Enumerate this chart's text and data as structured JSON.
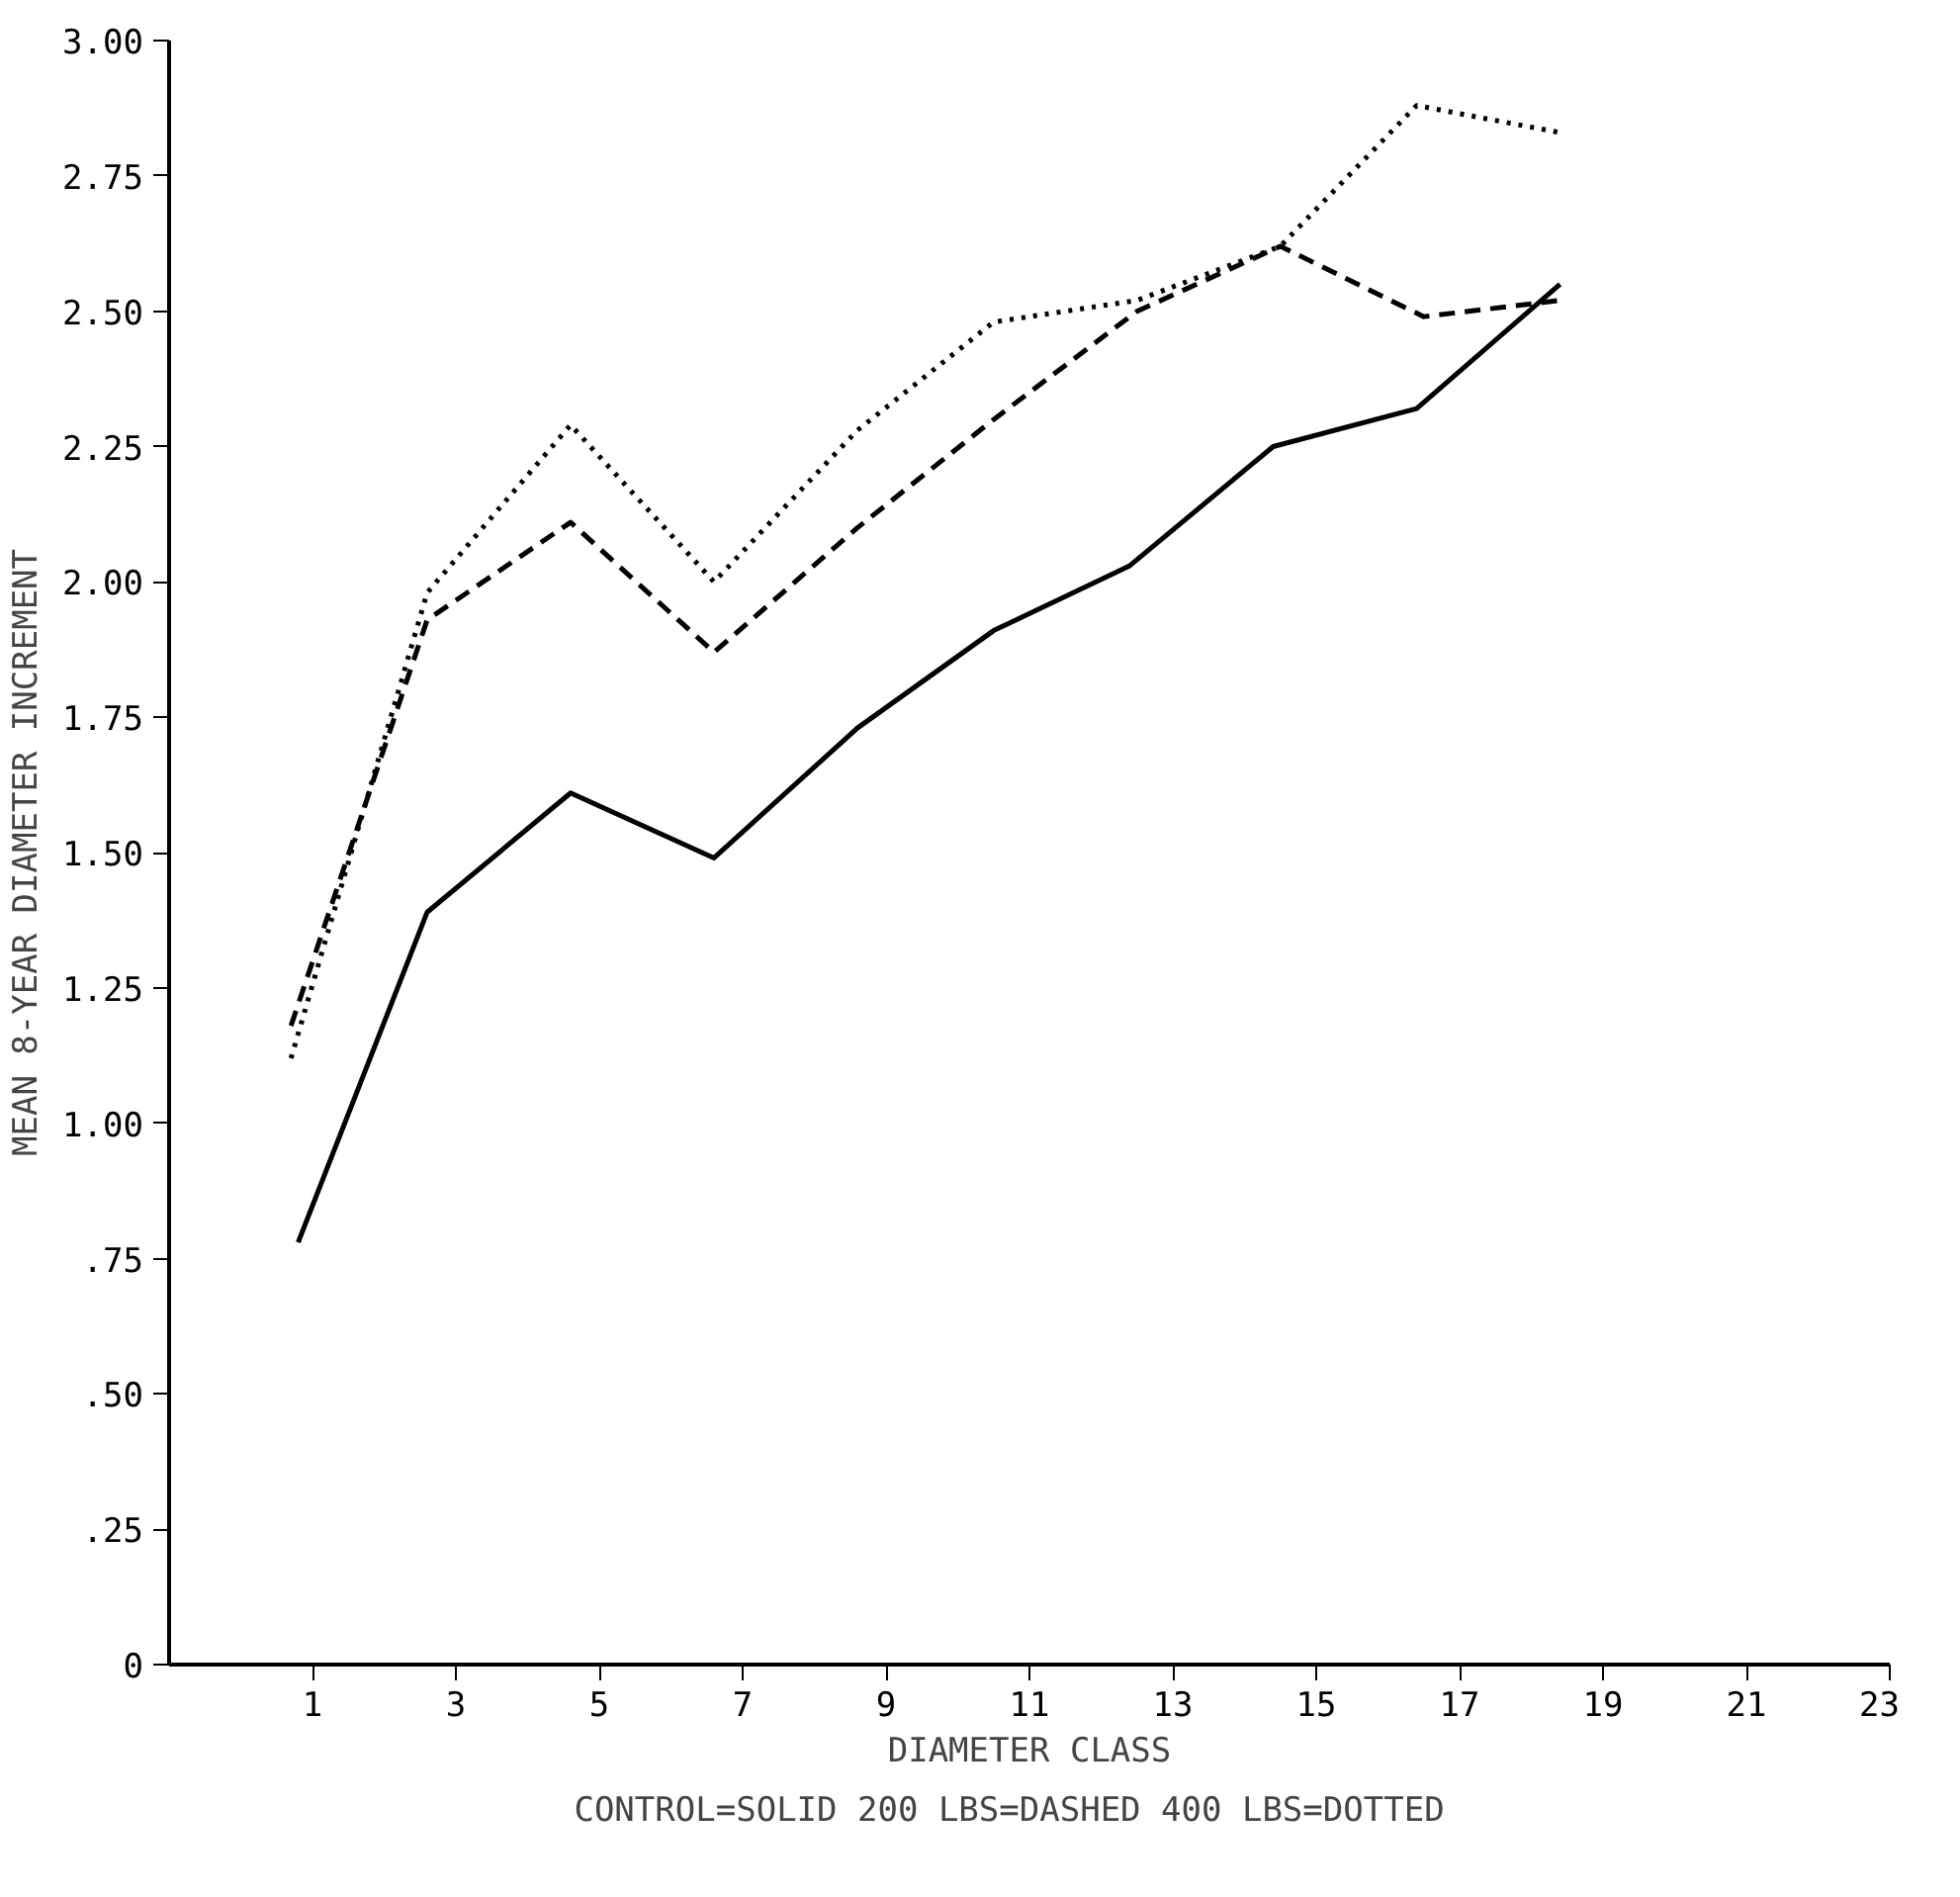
{
  "chart_data": {
    "type": "line",
    "xlabel": "DIAMETER CLASS",
    "ylabel": "MEAN 8-YEAR DIAMETER INCREMENT",
    "annotations": [
      "CONTROL=SOLID  200 LBS=DASHED  400 LBS=DOTTED"
    ],
    "xlim": [
      -1,
      23
    ],
    "xticks": [
      1,
      3,
      5,
      7,
      9,
      11,
      13,
      15,
      17,
      19,
      21,
      23
    ],
    "ylim": [
      0,
      3
    ],
    "yticks": [
      0,
      {
        "value": 0.25,
        "label": ".25"
      },
      {
        "value": 0.5,
        "label": ".50"
      },
      {
        "value": 0.75,
        "label": ".75"
      },
      {
        "value": 1,
        "label": "1.00"
      },
      {
        "value": 1.25,
        "label": "1.25"
      },
      {
        "value": 1.5,
        "label": "1.50"
      },
      {
        "value": 1.75,
        "label": "1.75"
      },
      {
        "value": 2,
        "label": "2.00"
      },
      {
        "value": 2.25,
        "label": "2.25"
      },
      {
        "value": 2.5,
        "label": "2.50"
      },
      {
        "value": 2.75,
        "label": "2.75"
      },
      {
        "value": 3,
        "label": "3.00"
      }
    ],
    "grid": false,
    "series": [
      {
        "color": "#000000",
        "line_style": "solid",
        "x": [
          0.8,
          2.6,
          4.6,
          6.6,
          8.6,
          10.5,
          12.4,
          14.4,
          16.4,
          18.4
        ],
        "values": [
          0.78,
          1.39,
          1.61,
          1.49,
          1.73,
          1.91,
          2.03,
          2.25,
          2.32,
          2.55
        ]
      },
      {
        "color": "#000000",
        "line_style": "dashed",
        "x": [
          0.7,
          2.6,
          4.6,
          6.6,
          8.6,
          10.5,
          12.5,
          14.5,
          16.5,
          18.4
        ],
        "values": [
          1.18,
          1.93,
          2.11,
          1.87,
          2.1,
          2.3,
          2.5,
          2.62,
          2.49,
          2.52
        ]
      },
      {
        "color": "#000000",
        "line_style": "dotted",
        "x": [
          0.7,
          2.6,
          4.6,
          6.6,
          8.6,
          10.5,
          12.5,
          14.5,
          16.4,
          18.4
        ],
        "values": [
          1.12,
          1.98,
          2.29,
          2.0,
          2.28,
          2.48,
          2.52,
          2.62,
          2.88,
          2.83
        ]
      }
    ]
  }
}
